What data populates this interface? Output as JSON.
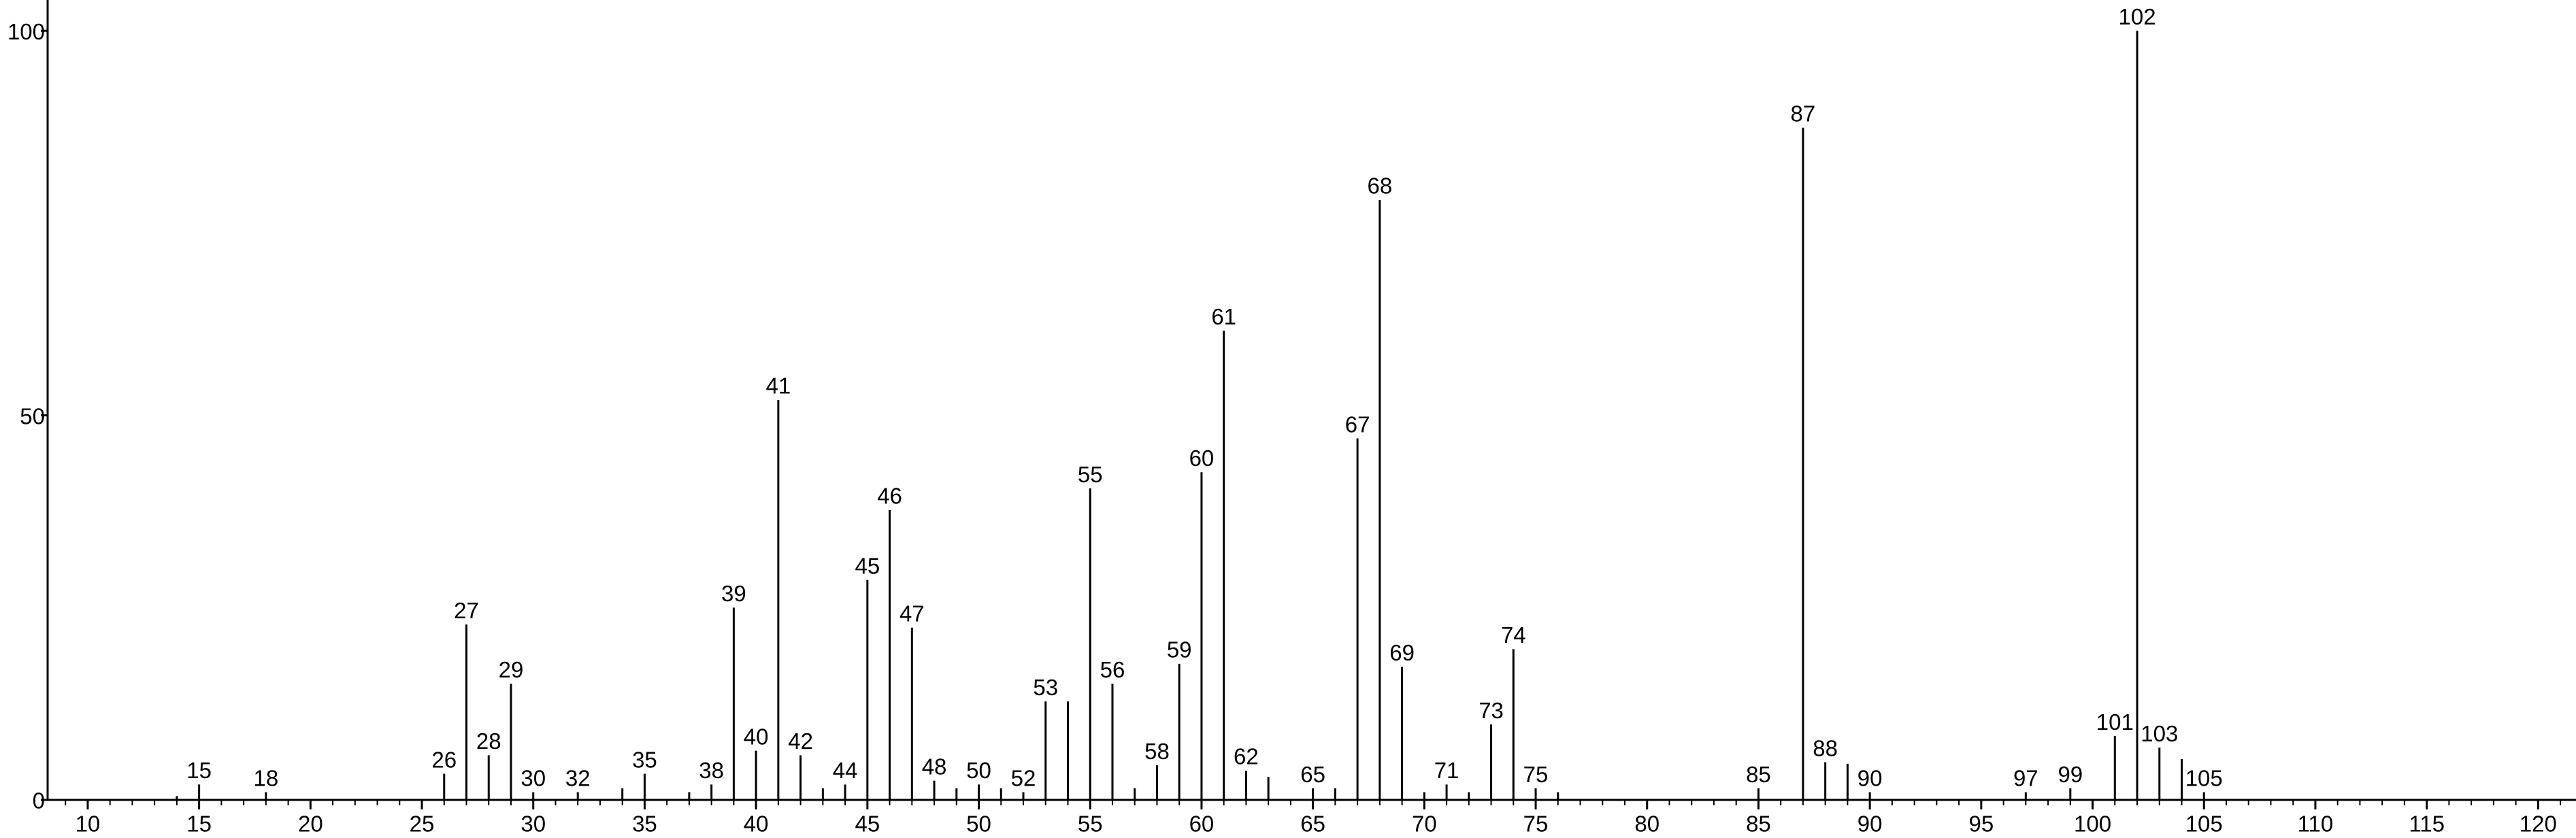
{
  "chart_data": {
    "type": "stem",
    "x": [
      14,
      15,
      18,
      26,
      27,
      28,
      29,
      30,
      32,
      34,
      35,
      37,
      38,
      39,
      40,
      41,
      42,
      43,
      44,
      45,
      46,
      47,
      48,
      49,
      50,
      51,
      52,
      53,
      54,
      55,
      56,
      57,
      58,
      59,
      60,
      61,
      62,
      63,
      65,
      66,
      67,
      68,
      69,
      70,
      71,
      72,
      73,
      74,
      75,
      76,
      85,
      87,
      88,
      89,
      90,
      97,
      99,
      101,
      102,
      103,
      104,
      105
    ],
    "values": [
      0.5,
      2,
      1,
      3.4,
      22.8,
      5.8,
      15.1,
      1,
      1,
      1.5,
      3.4,
      1,
      2,
      25,
      6.4,
      52,
      5.8,
      1.5,
      2,
      28.6,
      37.7,
      22.4,
      2.5,
      1.5,
      2,
      1.5,
      1,
      12.8,
      12.8,
      40.5,
      15.1,
      1.5,
      4.5,
      17.7,
      42.6,
      61,
      3.8,
      3,
      1.5,
      1.5,
      47,
      78,
      17.3,
      1,
      2,
      1,
      9.8,
      19.6,
      1.5,
      1,
      1.5,
      87.4,
      4.9,
      4.7,
      1,
      1,
      1.5,
      8.3,
      100,
      6.8,
      5.3,
      1
    ],
    "peak_labels": [
      null,
      15,
      18,
      26,
      27,
      28,
      29,
      30,
      32,
      null,
      35,
      null,
      38,
      39,
      40,
      41,
      42,
      null,
      44,
      45,
      46,
      47,
      48,
      null,
      50,
      null,
      52,
      53,
      null,
      55,
      56,
      null,
      58,
      59,
      60,
      61,
      62,
      null,
      65,
      null,
      67,
      68,
      69,
      null,
      71,
      null,
      73,
      74,
      75,
      null,
      85,
      87,
      88,
      null,
      90,
      97,
      99,
      101,
      102,
      103,
      null,
      105
    ],
    "color": "#000000",
    "xlim": [
      8.2,
      121.7
    ],
    "xticks": [
      10,
      15,
      20,
      25,
      30,
      35,
      40,
      45,
      50,
      55,
      60,
      65,
      70,
      75,
      80,
      85,
      90,
      95,
      100,
      105,
      110,
      115,
      120
    ],
    "xminorticks": [
      9,
      11,
      12,
      13,
      14,
      16,
      17,
      18,
      19,
      21,
      22,
      23,
      24,
      26,
      27,
      28,
      29,
      31,
      32,
      33,
      34,
      36,
      37,
      38,
      39,
      41,
      42,
      43,
      44,
      46,
      47,
      48,
      49,
      51,
      52,
      53,
      54,
      56,
      57,
      58,
      59,
      61,
      62,
      63,
      64,
      66,
      67,
      68,
      69,
      71,
      72,
      73,
      74,
      76,
      77,
      78,
      79,
      81,
      82,
      83,
      84,
      86,
      87,
      88,
      89,
      91,
      92,
      93,
      94,
      96,
      97,
      98,
      99,
      101,
      102,
      103,
      104,
      106,
      107,
      108,
      109,
      111,
      112,
      113,
      114,
      116,
      117,
      118,
      119,
      121
    ],
    "ylim": [
      0,
      104
    ],
    "yticks": [
      0,
      50,
      100
    ]
  }
}
